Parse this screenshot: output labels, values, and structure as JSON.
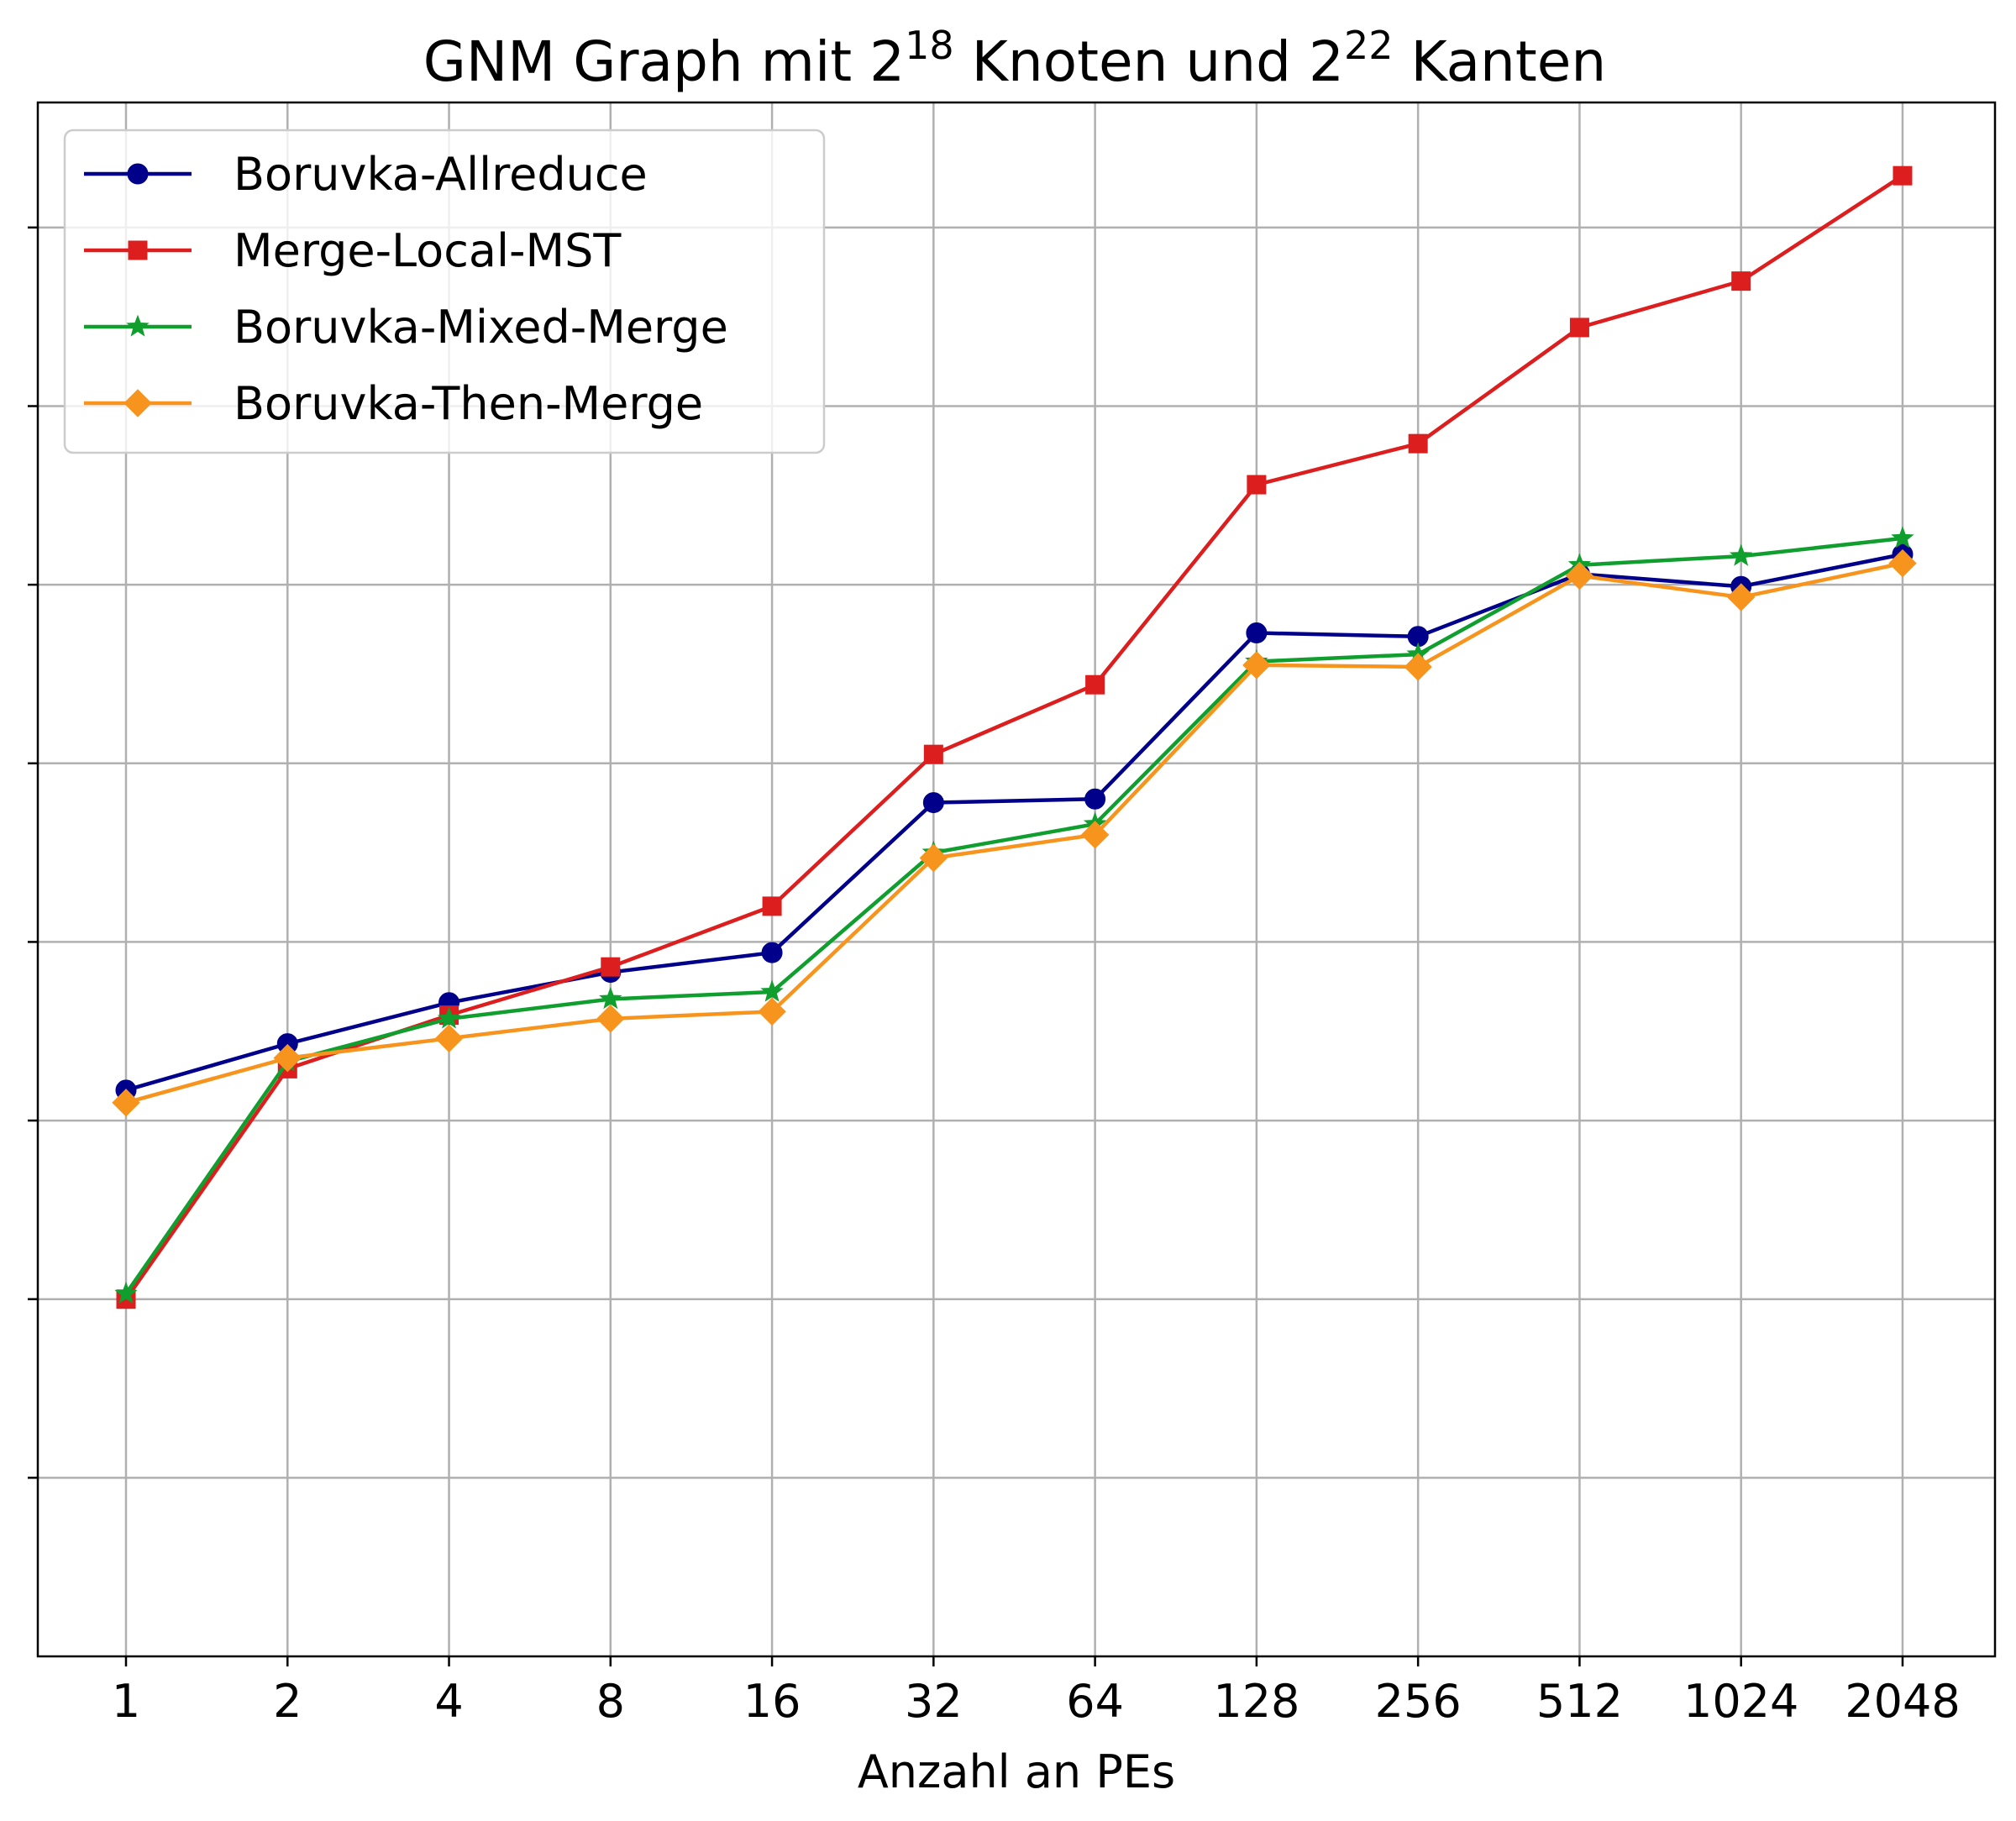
{
  "chart_data": {
    "type": "line",
    "title": {
      "part1": "GNM Graph mit 2",
      "sup1": "18",
      "part2": " Knoten und 2",
      "sup2": "22",
      "part3": " Kanten"
    },
    "xlabel": "Anzahl an PEs",
    "ylabel": "",
    "categories": [
      "1",
      "2",
      "4",
      "8",
      "16",
      "32",
      "64",
      "128",
      "256",
      "512",
      "1024",
      "2048"
    ],
    "y_scale": "log",
    "y_tick_labels_visible": false,
    "y_ticks": [
      1,
      2,
      3,
      4,
      5,
      6,
      7,
      8
    ],
    "ylim": [
      0.0,
      8.7
    ],
    "grid": true,
    "legend_position": "top-left",
    "series": [
      {
        "name": "Boruvka-Allreduce",
        "color": "#00008b",
        "marker": "circle",
        "values": [
          3.17,
          3.43,
          3.66,
          3.83,
          3.94,
          4.78,
          4.8,
          5.73,
          5.71,
          6.06,
          5.99,
          6.17
        ]
      },
      {
        "name": "Merge-Local-MST",
        "color": "#dc1e1e",
        "marker": "square",
        "values": [
          2.0,
          3.29,
          3.59,
          3.86,
          4.2,
          5.05,
          5.44,
          6.56,
          6.79,
          7.44,
          7.7,
          8.29
        ]
      },
      {
        "name": "Boruvka-Mixed-Merge",
        "color": "#109e2e",
        "marker": "star",
        "values": [
          2.03,
          3.33,
          3.57,
          3.68,
          3.72,
          4.5,
          4.66,
          5.57,
          5.61,
          6.11,
          6.16,
          6.26
        ]
      },
      {
        "name": "Boruvka-Then-Merge",
        "color": "#f7941d",
        "marker": "diamond",
        "values": [
          3.1,
          3.35,
          3.46,
          3.57,
          3.61,
          4.47,
          4.6,
          5.55,
          5.54,
          6.05,
          5.93,
          6.12
        ]
      }
    ]
  }
}
